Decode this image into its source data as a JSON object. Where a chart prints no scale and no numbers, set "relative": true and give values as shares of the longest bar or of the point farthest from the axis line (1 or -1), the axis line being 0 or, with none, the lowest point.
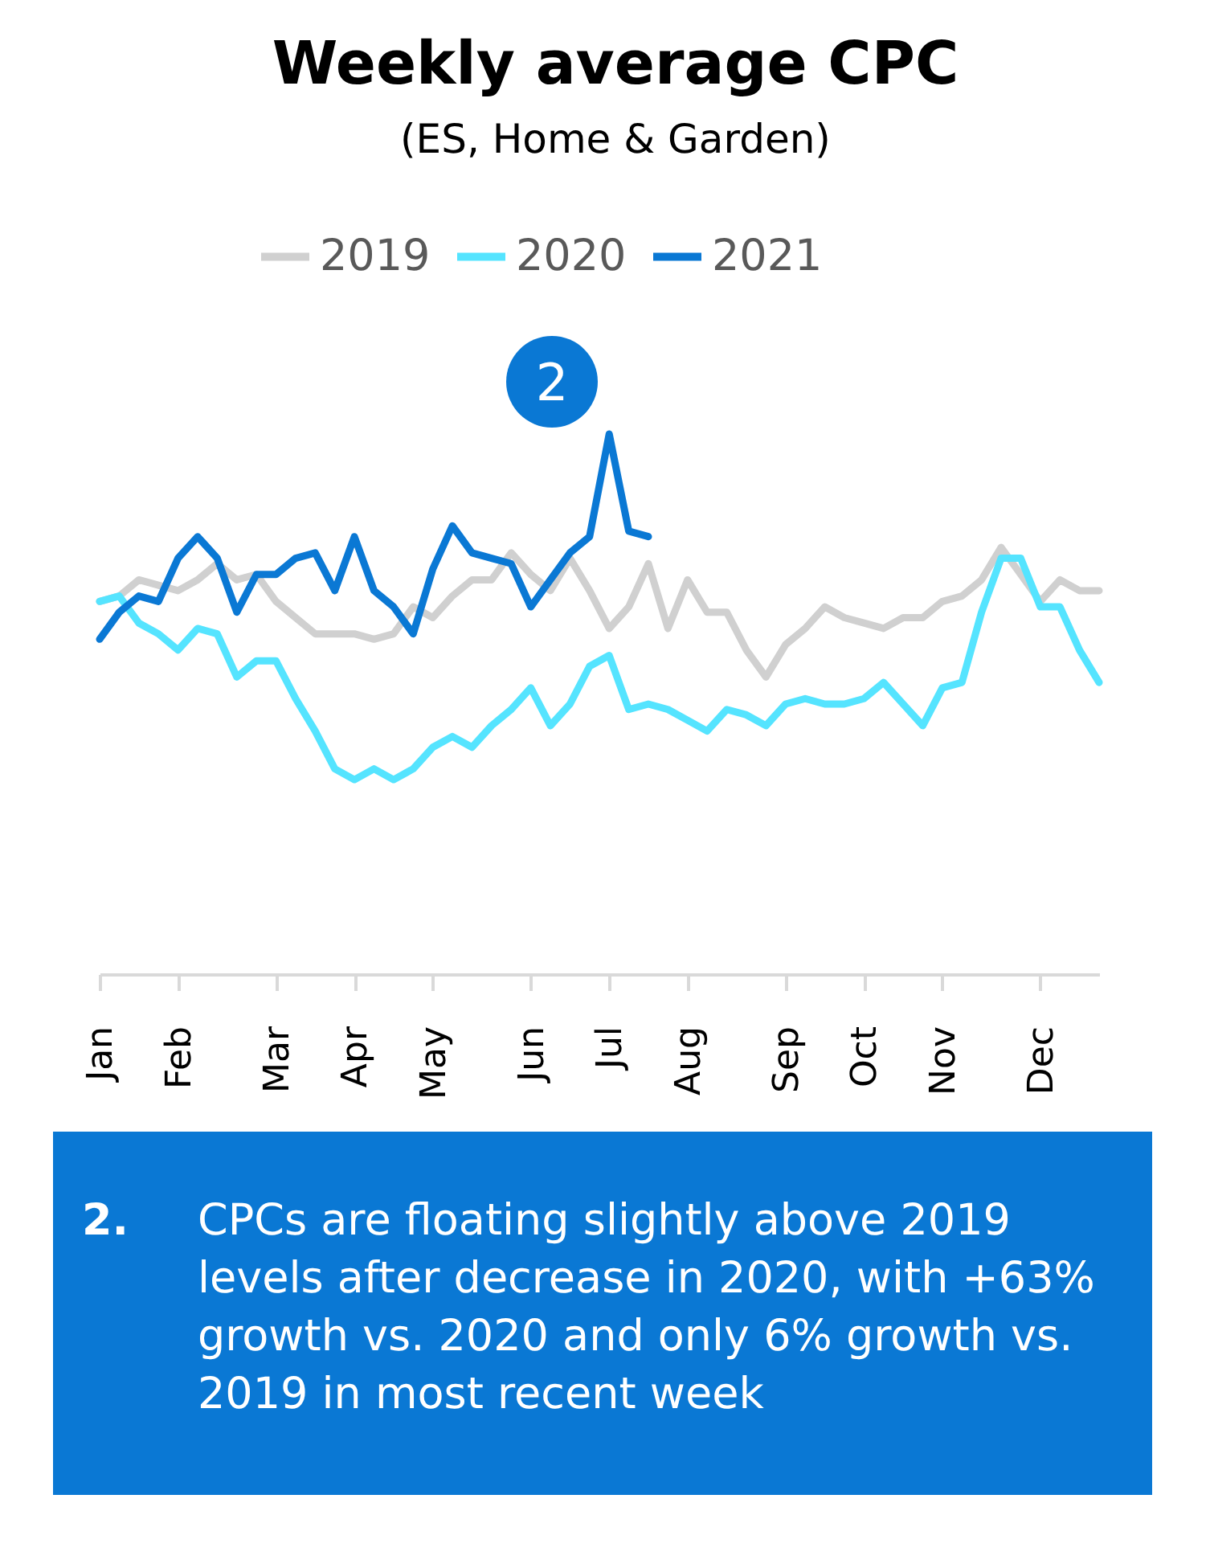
{
  "chart_data": {
    "type": "line",
    "title": "Weekly average CPC",
    "subtitle": "(ES, Home & Garden)",
    "relative": true,
    "legend": "top",
    "grid": false,
    "marker": "none",
    "line_style": "solid",
    "tick_labels": "x",
    "categories": [
      "Jan",
      null,
      null,
      null,
      "Feb",
      null,
      null,
      null,
      null,
      "Mar",
      null,
      null,
      null,
      "Apr",
      null,
      null,
      null,
      "May",
      null,
      null,
      null,
      null,
      "Jun",
      null,
      null,
      null,
      "Jul",
      null,
      null,
      null,
      "Aug",
      null,
      null,
      null,
      null,
      "Sep",
      null,
      null,
      null,
      "Oct",
      null,
      null,
      null,
      "Nov",
      null,
      null,
      null,
      null,
      "Dec",
      null,
      null,
      null
    ],
    "series": [
      {
        "name": "2019",
        "color": "#d0d0d0",
        "values": [
          0.69,
          0.7,
          0.73,
          0.72,
          0.71,
          0.73,
          0.76,
          0.73,
          0.74,
          0.69,
          0.66,
          0.63,
          0.63,
          0.63,
          0.62,
          0.63,
          0.68,
          0.66,
          0.7,
          0.73,
          0.73,
          0.78,
          0.74,
          0.71,
          0.77,
          0.71,
          0.64,
          0.68,
          0.76,
          0.64,
          0.73,
          0.67,
          0.67,
          0.6,
          0.55,
          0.61,
          0.64,
          0.68,
          0.66,
          0.65,
          0.64,
          0.66,
          0.66,
          0.69,
          0.7,
          0.73,
          0.79,
          0.74,
          0.69,
          0.73,
          0.71,
          0.71
        ]
      },
      {
        "name": "2020",
        "color": "#55e4ff",
        "values": [
          0.69,
          0.7,
          0.65,
          0.63,
          0.6,
          0.64,
          0.63,
          0.55,
          0.58,
          0.58,
          0.51,
          0.45,
          0.38,
          0.36,
          0.38,
          0.36,
          0.38,
          0.42,
          0.44,
          0.42,
          0.46,
          0.49,
          0.53,
          0.46,
          0.5,
          0.57,
          0.59,
          0.49,
          0.5,
          0.49,
          0.47,
          0.45,
          0.49,
          0.48,
          0.46,
          0.5,
          0.51,
          0.5,
          0.5,
          0.51,
          0.54,
          0.5,
          0.46,
          0.53,
          0.54,
          0.67,
          0.77,
          0.77,
          0.68,
          0.68,
          0.6,
          0.54
        ]
      },
      {
        "name": "2021",
        "color": "#0a78d4",
        "values": [
          0.62,
          0.67,
          0.7,
          0.69,
          0.77,
          0.81,
          0.77,
          0.67,
          0.74,
          0.74,
          0.77,
          0.78,
          0.71,
          0.81,
          0.71,
          0.68,
          0.63,
          0.75,
          0.83,
          0.78,
          0.77,
          0.76,
          0.68,
          0.73,
          0.78,
          0.81,
          1,
          0.82,
          0.81,
          null,
          null,
          null,
          null,
          null,
          null,
          null,
          null,
          null,
          null,
          null,
          null,
          null,
          null,
          null,
          null,
          null,
          null,
          null,
          null,
          null,
          null,
          null
        ]
      }
    ],
    "annotations": [
      "2",
      "2.",
      "CPCs are floating slightly above 2019 levels after decrease in 2020, with +63% growth vs. 2020 and only 6% growth vs. 2019 in most recent week"
    ]
  }
}
